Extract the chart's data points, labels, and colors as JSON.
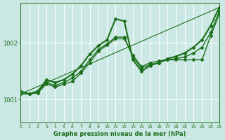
{
  "background_color": "#cce8e4",
  "plot_bg_color": "#cce8e4",
  "grid_color": "#ffffff",
  "line_color": "#1a6e1a",
  "xlabel": "Graphe pression niveau de la mer (hPa)",
  "xlim": [
    0,
    23
  ],
  "ylim": [
    1000.6,
    1002.7
  ],
  "yticks": [
    1001,
    1002
  ],
  "xticks": [
    0,
    1,
    2,
    3,
    4,
    5,
    6,
    7,
    8,
    9,
    10,
    11,
    12,
    13,
    14,
    15,
    16,
    17,
    18,
    19,
    20,
    21,
    22,
    23
  ],
  "series": [
    {
      "x": [
        0,
        1,
        2,
        3,
        4,
        5,
        6,
        7,
        8,
        9,
        10,
        11,
        12,
        13,
        14,
        15,
        16,
        17,
        18,
        19,
        20,
        21,
        22,
        23
      ],
      "y": [
        1001.15,
        1001.1,
        1001.15,
        1001.35,
        1001.3,
        1001.35,
        1001.45,
        1001.6,
        1001.8,
        1001.95,
        1002.05,
        1002.42,
        1002.38,
        1001.7,
        1001.5,
        1001.6,
        1001.65,
        1001.72,
        1001.76,
        1001.82,
        1001.92,
        1002.05,
        1002.3,
        1002.62
      ],
      "marker": "D",
      "markersize": 2.5,
      "linewidth": 1.5
    },
    {
      "x": [
        0,
        1,
        2,
        3,
        4,
        5,
        6,
        7,
        8,
        9,
        10,
        11,
        12,
        13,
        14,
        15,
        16,
        17,
        18,
        19,
        20,
        21,
        22,
        23
      ],
      "y": [
        1001.1,
        1001.1,
        1001.15,
        1001.3,
        1001.25,
        1001.3,
        1001.38,
        1001.5,
        1001.7,
        1001.88,
        1001.98,
        1002.1,
        1002.1,
        1001.75,
        1001.55,
        1001.62,
        1001.65,
        1001.7,
        1001.72,
        1001.75,
        1001.82,
        1001.92,
        1002.18,
        1002.55
      ],
      "marker": "D",
      "markersize": 2.5,
      "linewidth": 1.0
    },
    {
      "x": [
        0,
        1,
        2,
        3,
        4,
        5,
        6,
        7,
        8,
        9,
        10,
        11,
        12,
        13,
        14,
        15,
        16,
        17,
        18,
        19,
        20,
        21,
        22,
        23
      ],
      "y": [
        1001.1,
        1001.1,
        1001.12,
        1001.28,
        1001.22,
        1001.27,
        1001.32,
        1001.47,
        1001.65,
        1001.85,
        1001.96,
        1002.07,
        1002.07,
        1001.78,
        1001.58,
        1001.65,
        1001.68,
        1001.7,
        1001.7,
        1001.7,
        1001.7,
        1001.7,
        1002.12,
        1002.5
      ],
      "marker": "D",
      "markersize": 2.5,
      "linewidth": 1.0
    },
    {
      "x": [
        0,
        23
      ],
      "y": [
        1001.1,
        1002.62
      ],
      "marker": null,
      "markersize": 0,
      "linewidth": 0.8
    }
  ]
}
